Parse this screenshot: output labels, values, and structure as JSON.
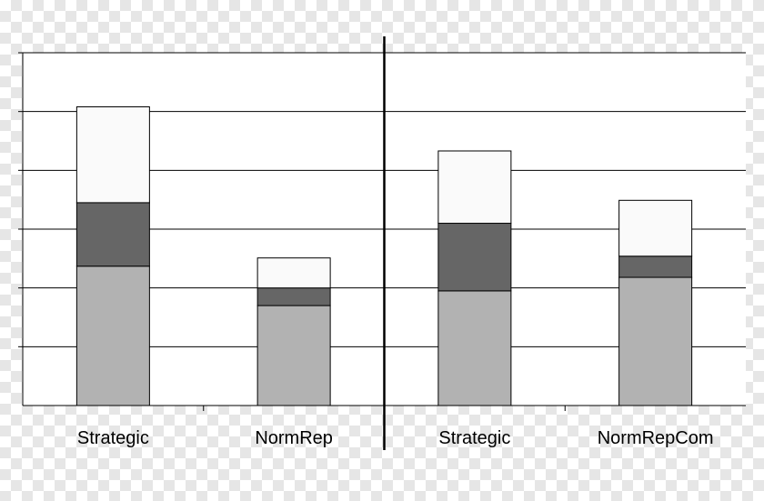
{
  "chart_data": {
    "type": "bar",
    "stacked": true,
    "categories": [
      "Strategic",
      "NormRep",
      "Strategic",
      "NormRepCom"
    ],
    "ylim": [
      0,
      6
    ],
    "grid": true,
    "legend": "none",
    "title": "",
    "xlabel": "",
    "ylabel": "",
    "series": [
      {
        "values": [
          2.37,
          1.7,
          1.95,
          2.18
        ],
        "color": "#b2b2b2"
      },
      {
        "values": [
          1.08,
          0.3,
          1.15,
          0.36
        ],
        "color": "#666666"
      },
      {
        "values": [
          1.63,
          0.51,
          1.23,
          0.95
        ],
        "color": "#fafafa"
      }
    ]
  }
}
